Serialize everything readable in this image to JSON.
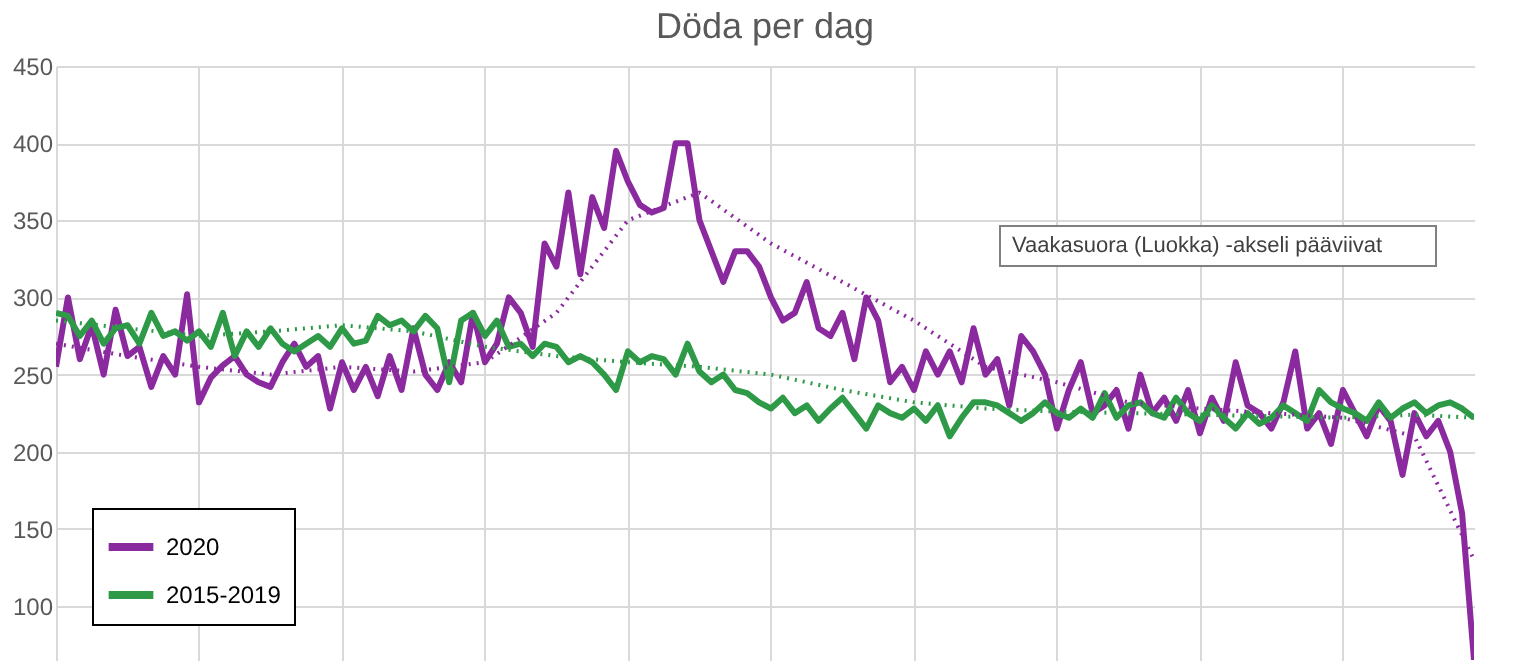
{
  "chart_data": {
    "type": "line",
    "title": "Döda per dag",
    "categories": [
      null,
      null,
      null,
      null,
      null,
      null,
      null,
      null,
      null,
      null,
      null,
      null,
      null,
      null,
      null,
      null,
      null,
      null,
      null,
      null,
      null,
      null,
      null,
      null,
      null,
      null,
      null,
      null,
      null,
      null,
      null,
      null,
      null,
      null,
      null,
      null,
      null,
      null,
      null,
      null,
      null,
      null,
      null,
      null,
      null,
      null,
      null,
      null,
      null,
      null,
      null,
      null,
      null,
      null,
      null,
      null,
      null,
      null,
      null,
      null,
      null,
      null,
      null,
      null,
      null,
      null,
      null,
      null,
      null,
      null,
      null,
      null,
      null,
      null,
      null,
      null,
      null,
      null,
      null,
      null,
      null,
      null,
      null,
      null,
      null,
      null,
      null,
      null,
      null,
      null,
      null,
      null,
      null,
      null,
      null,
      null,
      null,
      null,
      null,
      null,
      null,
      null,
      null,
      null,
      null,
      null,
      null,
      null,
      null,
      null,
      null,
      null,
      null,
      null,
      null,
      null,
      null,
      null,
      null,
      null
    ],
    "series": [
      {
        "name": "2020",
        "color": "#8b2a9e",
        "values": [
          255,
          300,
          260,
          282,
          250,
          292,
          262,
          268,
          242,
          262,
          250,
          302,
          232,
          248,
          256,
          262,
          250,
          245,
          242,
          258,
          270,
          255,
          262,
          228,
          258,
          240,
          255,
          236,
          262,
          240,
          280,
          250,
          240,
          258,
          245,
          290,
          258,
          270,
          300,
          290,
          268,
          335,
          320,
          368,
          315,
          365,
          345,
          395,
          375,
          360,
          355,
          358,
          400,
          400,
          350,
          330,
          310,
          330,
          330,
          320,
          300,
          285,
          290,
          310,
          280,
          275,
          290,
          260,
          300,
          285,
          245,
          255,
          240,
          265,
          250,
          265,
          245,
          280,
          250,
          260,
          230,
          275,
          265,
          250,
          215,
          240,
          258,
          225,
          230,
          240,
          215,
          250,
          225,
          235,
          220,
          240,
          212,
          235,
          220,
          258,
          230,
          225,
          215,
          232,
          265,
          215,
          225,
          205,
          240,
          225,
          210,
          230,
          220,
          185,
          225,
          210,
          220,
          200,
          160,
          65
        ]
      },
      {
        "name": "2015-2019",
        "color": "#2e9a47",
        "values": [
          290,
          288,
          275,
          285,
          270,
          280,
          282,
          270,
          290,
          275,
          278,
          272,
          278,
          268,
          290,
          262,
          278,
          268,
          280,
          270,
          265,
          270,
          275,
          268,
          280,
          270,
          272,
          288,
          282,
          285,
          278,
          288,
          280,
          245,
          285,
          290,
          275,
          285,
          268,
          270,
          262,
          270,
          268,
          258,
          262,
          258,
          250,
          240,
          265,
          258,
          262,
          260,
          250,
          270,
          252,
          245,
          250,
          240,
          238,
          232,
          228,
          235,
          225,
          230,
          220,
          228,
          235,
          225,
          215,
          230,
          225,
          222,
          228,
          220,
          230,
          210,
          222,
          232,
          232,
          230,
          225,
          220,
          225,
          232,
          225,
          222,
          228,
          222,
          238,
          222,
          230,
          232,
          225,
          222,
          235,
          225,
          220,
          230,
          222,
          215,
          225,
          218,
          222,
          230,
          225,
          220,
          240,
          232,
          228,
          225,
          220,
          232,
          222,
          228,
          232,
          225,
          230,
          232,
          228,
          222
        ]
      },
      {
        "color": "#8b2a9e",
        "line_style": "dotted",
        "values": [
          270,
          null,
          null,
          null,
          null,
          null,
          262,
          null,
          null,
          null,
          null,
          null,
          255,
          null,
          null,
          null,
          null,
          null,
          250,
          null,
          null,
          null,
          null,
          null,
          255,
          null,
          null,
          null,
          null,
          null,
          252,
          null,
          null,
          null,
          null,
          null,
          258,
          null,
          null,
          null,
          null,
          null,
          290,
          null,
          null,
          null,
          null,
          null,
          350,
          null,
          null,
          null,
          null,
          null,
          368,
          null,
          null,
          null,
          null,
          null,
          335,
          null,
          null,
          null,
          null,
          null,
          310,
          null,
          null,
          null,
          null,
          null,
          285,
          null,
          null,
          null,
          null,
          null,
          255,
          null,
          null,
          null,
          null,
          null,
          245,
          null,
          null,
          null,
          null,
          null,
          232,
          null,
          null,
          null,
          null,
          null,
          228,
          null,
          null,
          null,
          null,
          null,
          225,
          null,
          null,
          null,
          null,
          null,
          222,
          null,
          null,
          null,
          null,
          null,
          210,
          null,
          null,
          null,
          null,
          130
        ]
      },
      {
        "color": "#2e9a47",
        "line_style": "dotted",
        "values": [
          285,
          null,
          null,
          null,
          null,
          null,
          280,
          null,
          null,
          null,
          null,
          null,
          275,
          null,
          null,
          null,
          null,
          null,
          278,
          null,
          null,
          null,
          null,
          null,
          282,
          null,
          null,
          null,
          null,
          null,
          278,
          null,
          null,
          null,
          null,
          null,
          268,
          null,
          null,
          null,
          null,
          null,
          262,
          null,
          null,
          null,
          null,
          null,
          258,
          null,
          null,
          null,
          null,
          null,
          255,
          null,
          null,
          null,
          null,
          null,
          250,
          null,
          null,
          null,
          null,
          null,
          240,
          null,
          null,
          null,
          null,
          null,
          232,
          null,
          null,
          null,
          null,
          null,
          228,
          null,
          null,
          null,
          null,
          null,
          226,
          null,
          null,
          null,
          null,
          null,
          225,
          null,
          null,
          null,
          null,
          null,
          224,
          null,
          null,
          null,
          null,
          null,
          223,
          null,
          null,
          null,
          null,
          null,
          222,
          null,
          null,
          null,
          null,
          null,
          224,
          null,
          null,
          null,
          null,
          222
        ]
      }
    ],
    "ylim": [
      65,
      450
    ],
    "yticks": [
      100,
      150,
      200,
      250,
      300,
      350,
      400,
      450
    ],
    "grid": true,
    "legend": "bottom left",
    "tick_labels": "y",
    "line_style": "solid",
    "annotations": [
      "Vaakasuora (Luokka)  -akseli pääviivat"
    ]
  }
}
